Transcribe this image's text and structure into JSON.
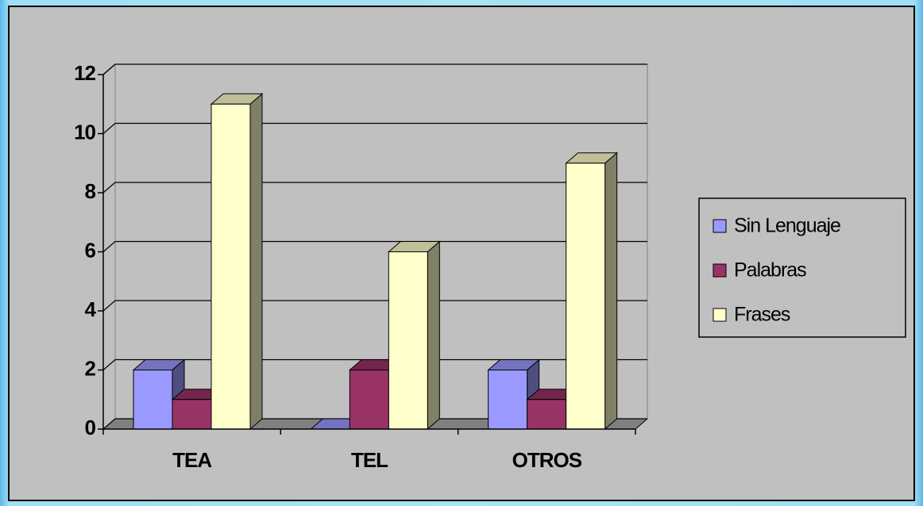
{
  "chart_data": {
    "type": "bar3d",
    "categories": [
      "TEA",
      "TEL",
      "OTROS"
    ],
    "series": [
      {
        "name": "Sin Lenguaje",
        "color": "#9999ff",
        "values": [
          2,
          0,
          2
        ]
      },
      {
        "name": "Palabras",
        "color": "#993366",
        "values": [
          1,
          2,
          1
        ]
      },
      {
        "name": "Frases",
        "color": "#ffffcc",
        "values": [
          11,
          6,
          9
        ]
      }
    ],
    "ylim": [
      0,
      12
    ],
    "yticks": [
      0,
      2,
      4,
      6,
      8,
      10,
      12
    ],
    "grid": true,
    "legend": "right"
  }
}
